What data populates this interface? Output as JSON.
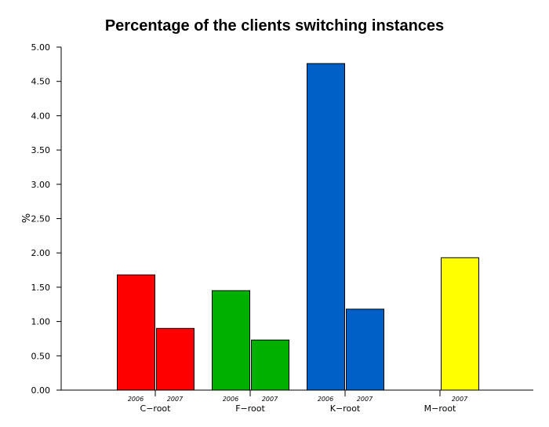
{
  "chart_data": {
    "type": "bar",
    "title": "Percentage of the clients switching instances",
    "ylabel": "%",
    "xlabel": "",
    "ylim": [
      0,
      5
    ],
    "yticks": [
      "0.00",
      "0.50",
      "1.00",
      "1.50",
      "2.00",
      "2.50",
      "3.00",
      "3.50",
      "4.00",
      "4.50",
      "5.00"
    ],
    "groups": [
      {
        "name": "C−root",
        "color": "#ff0000",
        "bars": [
          {
            "label": "2006",
            "value": 1.68
          },
          {
            "label": "2007",
            "value": 0.9
          }
        ]
      },
      {
        "name": "F−root",
        "color": "#00b000",
        "bars": [
          {
            "label": "2006",
            "value": 1.45
          },
          {
            "label": "2007",
            "value": 0.73
          }
        ]
      },
      {
        "name": "K−root",
        "color": "#0060c8",
        "bars": [
          {
            "label": "2006",
            "value": 4.76
          },
          {
            "label": "2007",
            "value": 1.18
          }
        ]
      },
      {
        "name": "M−root",
        "color": "#ffff00",
        "bars": [
          {
            "label": "2007",
            "value": 1.93
          }
        ]
      }
    ]
  }
}
